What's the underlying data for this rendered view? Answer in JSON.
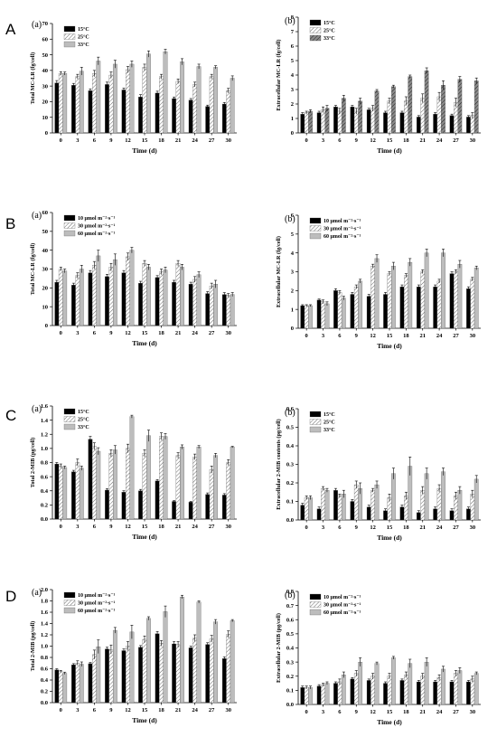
{
  "rows": [
    {
      "letter": "A"
    },
    {
      "letter": "B"
    },
    {
      "letter": "C"
    },
    {
      "letter": "D"
    }
  ],
  "colors": {
    "black": "#000000",
    "hatch_light": "#ffffff",
    "gray": "#bdbdbd",
    "dark_hatch": "#707070"
  },
  "chart_data": [
    {
      "id": "A-a",
      "type": "bar",
      "tag": "(a)",
      "ylabel": "Total MC-LR (fg/cell)",
      "xlabel": "Time (d)",
      "ylim": [
        0,
        70
      ],
      "yticks": [
        0,
        10,
        20,
        30,
        40,
        50,
        60,
        70
      ],
      "categories": [
        "0",
        "3",
        "6",
        "9",
        "12",
        "15",
        "18",
        "21",
        "24",
        "27",
        "30"
      ],
      "legend_placement": "top-left",
      "styles": [
        "solid",
        "hatch",
        "gray"
      ],
      "series": [
        {
          "name": "15°C",
          "values": [
            32,
            30.5,
            27,
            31,
            27.5,
            23,
            25.5,
            22,
            21,
            17,
            18.5
          ],
          "err": [
            1.5,
            1.2,
            1.2,
            1.5,
            1.2,
            1.5,
            1.2,
            1,
            1,
            0.8,
            1
          ]
        },
        {
          "name": "25°C",
          "values": [
            38,
            36,
            38,
            37,
            40.5,
            42,
            36,
            33,
            31,
            36,
            27
          ],
          "err": [
            1.2,
            1.5,
            2,
            2,
            2,
            2,
            1.5,
            1.5,
            1.5,
            1.5,
            1.5
          ]
        },
        {
          "name": "33°C",
          "values": [
            38,
            39.5,
            46,
            44,
            44,
            50.5,
            52,
            45.5,
            42.5,
            42,
            35
          ],
          "err": [
            1,
            2.5,
            2.5,
            2.5,
            2,
            2,
            1.5,
            2,
            1.5,
            1,
            1.5
          ]
        }
      ]
    },
    {
      "id": "A-b",
      "type": "bar",
      "tag": "(b)",
      "ylabel": "Extracellular MC-LR (fg/cell)",
      "xlabel": "Time (d)",
      "ylim": [
        0,
        8
      ],
      "yticks": [
        0,
        1,
        2,
        3,
        4,
        5,
        6,
        7,
        8
      ],
      "categories": [
        "0",
        "3",
        "6",
        "9",
        "12",
        "15",
        "18",
        "21",
        "24",
        "27",
        "30"
      ],
      "legend_placement": "top-left",
      "styles": [
        "solid",
        "hatch",
        "darkhatch"
      ],
      "series": [
        {
          "name": "15°C",
          "values": [
            1.3,
            1.4,
            1.8,
            1.8,
            1.6,
            1.4,
            1.4,
            1.1,
            1.3,
            1.2,
            1.1
          ],
          "err": [
            0.1,
            0.1,
            0.1,
            0.1,
            0.1,
            0.1,
            0.1,
            0.1,
            0.1,
            0.1,
            0.1
          ]
        },
        {
          "name": "25°C",
          "values": [
            1.4,
            1.6,
            1.5,
            1.5,
            1.7,
            2.2,
            2.2,
            2.4,
            2.5,
            2.1,
            1.2
          ],
          "err": [
            0.1,
            0.2,
            0.2,
            0.2,
            0.2,
            0.2,
            0.3,
            0.3,
            0.3,
            0.3,
            0.2
          ]
        },
        {
          "name": "33°C",
          "values": [
            1.5,
            1.7,
            2.4,
            2.2,
            2.9,
            3.2,
            3.9,
            4.3,
            3.3,
            3.7,
            3.6
          ],
          "err": [
            0.1,
            0.2,
            0.2,
            0.2,
            0.1,
            0.1,
            0.1,
            0.2,
            0.3,
            0.2,
            0.2
          ]
        }
      ]
    },
    {
      "id": "B-a",
      "type": "bar",
      "tag": "(a)",
      "ylabel": "Total MC-LR (fg/cell)",
      "xlabel": "Time (d)",
      "ylim": [
        0,
        60
      ],
      "yticks": [
        0,
        10,
        20,
        30,
        40,
        50,
        60
      ],
      "categories": [
        "0",
        "3",
        "6",
        "9",
        "12",
        "15",
        "18",
        "21",
        "24",
        "27",
        "30"
      ],
      "legend_placement": "top-left",
      "styles": [
        "solid",
        "hatch",
        "gray"
      ],
      "series": [
        {
          "name": "10 μmol m⁻²·s⁻¹",
          "values": [
            23,
            21.5,
            28,
            26,
            28,
            22.5,
            25.5,
            23,
            22,
            17,
            16.5
          ],
          "err": [
            1,
            1,
            1.2,
            1.2,
            1.2,
            1,
            1,
            1,
            1,
            1,
            1
          ]
        },
        {
          "name": "30 μmol m⁻²·s⁻¹",
          "values": [
            30,
            26.5,
            32,
            31,
            36.5,
            33,
            28.5,
            33,
            24.5,
            21,
            16
          ],
          "err": [
            1,
            1.5,
            2,
            2,
            2,
            1.5,
            1.5,
            1.5,
            1.5,
            1.5,
            1
          ]
        },
        {
          "name": "60 μmol m⁻²·s⁻¹",
          "values": [
            29,
            30,
            37,
            35,
            40,
            31,
            29.5,
            31,
            27,
            22,
            16.5
          ],
          "err": [
            1,
            2,
            3,
            3,
            1.5,
            1.5,
            1.5,
            1.5,
            1.5,
            2,
            1
          ]
        }
      ]
    },
    {
      "id": "B-b",
      "type": "bar",
      "tag": "(b)",
      "ylabel": "Extracellular MC-LR (fg/cell)",
      "xlabel": "Time (d)",
      "ylim": [
        0,
        6
      ],
      "yticks": [
        0,
        1,
        2,
        3,
        4,
        5,
        6
      ],
      "categories": [
        "0",
        "3",
        "6",
        "9",
        "12",
        "15",
        "18",
        "21",
        "24",
        "27",
        "30"
      ],
      "legend_placement": "top-left",
      "styles": [
        "solid",
        "hatch",
        "gray"
      ],
      "series": [
        {
          "name": "10 μmol m⁻²·s⁻¹",
          "values": [
            1.2,
            1.5,
            2.0,
            1.8,
            1.7,
            1.8,
            2.2,
            2.2,
            2.2,
            2.9,
            2.1
          ],
          "err": [
            0.05,
            0.05,
            0.1,
            0.1,
            0.1,
            0.1,
            0.1,
            0.1,
            0.1,
            0.1,
            0.1
          ]
        },
        {
          "name": "30 μmol m⁻²·s⁻¹",
          "values": [
            1.2,
            1.4,
            1.9,
            2.2,
            3.3,
            2.9,
            2.8,
            3.0,
            2.5,
            3.0,
            2.6
          ],
          "err": [
            0.05,
            0.1,
            0.1,
            0.1,
            0.1,
            0.1,
            0.1,
            0.1,
            0.1,
            0.1,
            0.1
          ]
        },
        {
          "name": "60 μmol m⁻²·s⁻¹",
          "values": [
            1.2,
            1.3,
            1.6,
            2.5,
            3.7,
            3.3,
            3.5,
            4.0,
            4.0,
            3.4,
            3.2
          ],
          "err": [
            0.05,
            0.1,
            0.1,
            0.1,
            0.2,
            0.2,
            0.2,
            0.2,
            0.2,
            0.2,
            0.1
          ]
        }
      ]
    },
    {
      "id": "C-a",
      "type": "bar",
      "tag": "(a)",
      "ylabel": "Total 2-MIB (pg/cell)",
      "xlabel": "Time (d)",
      "ylim": [
        0,
        1.6
      ],
      "yticks": [
        0,
        0.2,
        0.4,
        0.6,
        0.8,
        1.0,
        1.2,
        1.4,
        1.6
      ],
      "categories": [
        "0",
        "3",
        "6",
        "9",
        "12",
        "15",
        "18",
        "21",
        "24",
        "27",
        "30"
      ],
      "legend_placement": "top-left",
      "styles": [
        "solid",
        "hatch",
        "gray"
      ],
      "series": [
        {
          "name": "15°C",
          "values": [
            0.78,
            0.67,
            1.13,
            0.41,
            0.38,
            0.4,
            0.54,
            0.25,
            0.24,
            0.35,
            0.34
          ],
          "err": [
            0.02,
            0.02,
            0.04,
            0.02,
            0.02,
            0.02,
            0.02,
            0.01,
            0.01,
            0.02,
            0.02
          ]
        },
        {
          "name": "25°C",
          "values": [
            0.75,
            0.8,
            1.03,
            0.93,
            1.0,
            0.93,
            1.17,
            0.9,
            0.88,
            0.7,
            0.8
          ],
          "err": [
            0.03,
            0.05,
            0.05,
            0.05,
            0.06,
            0.05,
            0.05,
            0.04,
            0.04,
            0.05,
            0.04
          ]
        },
        {
          "name": "33°C",
          "values": [
            0.73,
            0.72,
            0.96,
            0.98,
            1.45,
            1.18,
            1.17,
            1.02,
            1.02,
            0.9,
            1.02
          ],
          "err": [
            0.02,
            0.03,
            0.05,
            0.06,
            0.02,
            0.08,
            0.04,
            0.03,
            0.02,
            0.03,
            0.01
          ]
        }
      ]
    },
    {
      "id": "C-b",
      "type": "bar",
      "tag": "(b)",
      "ylabel": "Extracellular 2-MIB contents (pg/cell)",
      "xlabel": "Time (d)",
      "ylim": [
        0,
        0.6
      ],
      "yticks": [
        0,
        0.1,
        0.2,
        0.3,
        0.4,
        0.5,
        0.6
      ],
      "categories": [
        "0",
        "3",
        "6",
        "9",
        "12",
        "15",
        "18",
        "21",
        "24",
        "27",
        "30"
      ],
      "legend_placement": "top-left",
      "styles": [
        "solid",
        "hatch",
        "gray"
      ],
      "series": [
        {
          "name": "15°C",
          "values": [
            0.08,
            0.06,
            0.16,
            0.1,
            0.07,
            0.05,
            0.07,
            0.04,
            0.06,
            0.05,
            0.06
          ],
          "err": [
            0.01,
            0.01,
            0.01,
            0.01,
            0.01,
            0.01,
            0.01,
            0.01,
            0.01,
            0.01,
            0.01
          ]
        },
        {
          "name": "25°C",
          "values": [
            0.12,
            0.17,
            0.13,
            0.19,
            0.16,
            0.12,
            0.13,
            0.16,
            0.17,
            0.13,
            0.14
          ],
          "err": [
            0.01,
            0.01,
            0.01,
            0.02,
            0.01,
            0.02,
            0.02,
            0.02,
            0.02,
            0.02,
            0.02
          ]
        },
        {
          "name": "33°C",
          "values": [
            0.12,
            0.16,
            0.14,
            0.17,
            0.19,
            0.25,
            0.29,
            0.25,
            0.26,
            0.16,
            0.22
          ],
          "err": [
            0.01,
            0.01,
            0.02,
            0.03,
            0.02,
            0.03,
            0.05,
            0.03,
            0.02,
            0.02,
            0.02
          ]
        }
      ]
    },
    {
      "id": "D-a",
      "type": "bar",
      "tag": "(a)",
      "ylabel": "Total 2-MIB (pg/cell)",
      "xlabel": "Time (d)",
      "ylim": [
        0,
        2.0
      ],
      "yticks": [
        0,
        0.2,
        0.4,
        0.6,
        0.8,
        1.0,
        1.2,
        1.4,
        1.6,
        1.8,
        2.0
      ],
      "categories": [
        "0",
        "3",
        "6",
        "9",
        "12",
        "15",
        "18",
        "21",
        "24",
        "27",
        "30"
      ],
      "legend_placement": "top-left",
      "styles": [
        "solid",
        "hatch",
        "gray"
      ],
      "series": [
        {
          "name": "10 μmol m⁻²·s⁻¹",
          "values": [
            0.58,
            0.67,
            0.69,
            0.95,
            0.92,
            0.98,
            1.22,
            1.04,
            0.97,
            1.03,
            0.78
          ],
          "err": [
            0.02,
            0.02,
            0.02,
            0.03,
            0.03,
            0.03,
            0.04,
            0.04,
            0.03,
            0.03,
            0.03
          ]
        },
        {
          "name": "30 μmol m⁻²·s⁻¹",
          "values": [
            0.55,
            0.7,
            0.85,
            0.94,
            1.0,
            1.12,
            1.05,
            1.03,
            1.14,
            1.13,
            1.21
          ],
          "err": [
            0.02,
            0.04,
            0.08,
            0.08,
            0.08,
            0.06,
            0.05,
            0.05,
            0.06,
            0.06,
            0.06
          ]
        },
        {
          "name": "60 μmol m⁻²·s⁻¹",
          "values": [
            0.52,
            0.68,
            0.99,
            1.28,
            1.25,
            1.49,
            1.61,
            1.87,
            1.78,
            1.43,
            1.45
          ],
          "err": [
            0.02,
            0.04,
            0.12,
            0.05,
            0.12,
            0.03,
            0.1,
            0.03,
            0.02,
            0.04,
            0.02
          ]
        }
      ]
    },
    {
      "id": "D-b",
      "type": "bar",
      "tag": "(b)",
      "ylabel": "Extracellular 2-MIB (pg/cell)",
      "xlabel": "Time (d)",
      "ylim": [
        0,
        0.8
      ],
      "yticks": [
        0,
        0.1,
        0.2,
        0.3,
        0.4,
        0.5,
        0.6,
        0.7,
        0.8
      ],
      "categories": [
        "0",
        "3",
        "6",
        "9",
        "12",
        "15",
        "18",
        "21",
        "24",
        "27",
        "30"
      ],
      "legend_placement": "top-left",
      "styles": [
        "solid",
        "hatch",
        "gray"
      ],
      "series": [
        {
          "name": "10 μmol m⁻²·s⁻¹",
          "values": [
            0.12,
            0.13,
            0.15,
            0.18,
            0.17,
            0.15,
            0.17,
            0.16,
            0.16,
            0.16,
            0.16
          ],
          "err": [
            0.01,
            0.01,
            0.01,
            0.01,
            0.01,
            0.01,
            0.01,
            0.01,
            0.01,
            0.01,
            0.01
          ]
        },
        {
          "name": "30 μmol m⁻²·s⁻¹",
          "values": [
            0.12,
            0.14,
            0.16,
            0.22,
            0.2,
            0.2,
            0.21,
            0.2,
            0.19,
            0.22,
            0.18
          ],
          "err": [
            0.01,
            0.01,
            0.02,
            0.02,
            0.02,
            0.02,
            0.02,
            0.02,
            0.02,
            0.02,
            0.02
          ]
        },
        {
          "name": "60 μmol m⁻²·s⁻¹",
          "values": [
            0.12,
            0.15,
            0.21,
            0.3,
            0.29,
            0.33,
            0.29,
            0.3,
            0.25,
            0.24,
            0.22
          ],
          "err": [
            0.01,
            0.01,
            0.02,
            0.03,
            0.01,
            0.01,
            0.03,
            0.03,
            0.02,
            0.02,
            0.01
          ]
        }
      ]
    }
  ]
}
